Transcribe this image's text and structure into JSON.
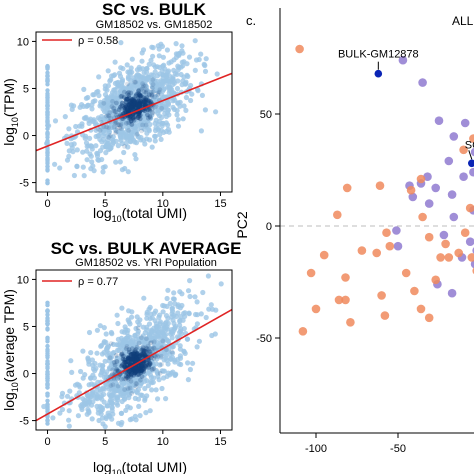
{
  "chart_data": [
    {
      "type": "scatter",
      "title": "SC vs. BULK",
      "subtitle": "GM18502 vs. GM18502",
      "xlabel_base": "log",
      "xlabel_sub": "10",
      "xlabel_rest": "(total UMI)",
      "ylabel_base": "log",
      "ylabel_sub": "10",
      "ylabel_rest": "(TPM)",
      "xlim": [
        -1,
        16
      ],
      "ylim": [
        -6,
        11
      ],
      "xticks": [
        0,
        5,
        10,
        15
      ],
      "yticks": [
        -5,
        0,
        5,
        10
      ],
      "legend": {
        "symbol": "ρ",
        "text": " = 0.58",
        "placement": "top-left"
      },
      "fit_line": {
        "x": [
          -1,
          16
        ],
        "y": [
          -1.6,
          6.6
        ]
      },
      "density_center": [
        7.5,
        3.0
      ],
      "colors": {
        "points": "#9cc5e6",
        "dense": "#0f3e7a",
        "line": "#e02424"
      }
    },
    {
      "type": "scatter",
      "title": "SC vs. BULK AVERAGE",
      "subtitle": "GM18502 vs. YRI Population",
      "xlabel_base": "log",
      "xlabel_sub": "10",
      "xlabel_rest": "(total UMI)",
      "ylabel_base": "log",
      "ylabel_sub": "10",
      "ylabel_rest": "(average TPM)",
      "xlim": [
        -1,
        16
      ],
      "ylim": [
        -6,
        11
      ],
      "xticks": [
        0,
        5,
        10,
        15
      ],
      "yticks": [
        -5,
        0,
        5,
        10
      ],
      "legend": {
        "symbol": "ρ",
        "text": " = 0.77",
        "placement": "top-left"
      },
      "fit_line": {
        "x": [
          -1,
          16
        ],
        "y": [
          -5.0,
          6.8
        ]
      },
      "density_center": [
        7.5,
        1.0
      ],
      "colors": {
        "points": "#9cc5e6",
        "dense": "#0f3e7a",
        "line": "#e02424"
      }
    },
    {
      "type": "scatter",
      "panel_label": "c.",
      "corner_text": "ALL",
      "ylabel": "PC2",
      "xlim": [
        -120,
        0
      ],
      "ylim": [
        -85,
        83
      ],
      "xticks": [
        -100,
        -50
      ],
      "yticks": [
        -50,
        0,
        50
      ],
      "zero_line": true,
      "colors": {
        "purple": "#8f7ad0",
        "orange": "#f08a5d",
        "highlight": "#0a24b5"
      },
      "annotations": [
        {
          "label": "BULK-GM12878",
          "x": -62,
          "y": 68
        },
        {
          "label": "SC",
          "x": -5,
          "y": 28
        }
      ],
      "series": [
        {
          "color_key": "purple",
          "points": [
            [
              -47,
              74
            ],
            [
              -35,
              64
            ],
            [
              -25,
              47
            ],
            [
              -16,
              40
            ],
            [
              -9,
              46
            ],
            [
              -3,
              33
            ],
            [
              -19,
              29
            ],
            [
              -10,
              22
            ],
            [
              -27,
              17
            ],
            [
              -41,
              13
            ],
            [
              -43,
              18
            ],
            [
              -36,
              19
            ],
            [
              -32,
              22
            ],
            [
              -31,
              10
            ],
            [
              -17,
              14
            ],
            [
              -4,
              24
            ],
            [
              -4,
              7
            ],
            [
              -16,
              4
            ],
            [
              -51,
              -2
            ],
            [
              -22,
              -4
            ],
            [
              -50,
              -9
            ],
            [
              -26,
              -26
            ],
            [
              -17,
              -30
            ],
            [
              -11,
              -14
            ],
            [
              -2,
              -11
            ],
            [
              -3,
              -17
            ],
            [
              -6,
              -7
            ]
          ]
        },
        {
          "color_key": "orange",
          "points": [
            [
              -110,
              79
            ],
            [
              -4,
              39
            ],
            [
              -10,
              34
            ],
            [
              -36,
              21
            ],
            [
              -42,
              16
            ],
            [
              -61,
              18
            ],
            [
              -81,
              17
            ],
            [
              -87,
              5
            ],
            [
              -6,
              8
            ],
            [
              -35,
              4
            ],
            [
              -31,
              -5
            ],
            [
              -21,
              -8
            ],
            [
              -13,
              -12
            ],
            [
              -24,
              -14
            ],
            [
              -57,
              -3
            ],
            [
              -63,
              -12
            ],
            [
              -72,
              -11
            ],
            [
              -95,
              -13
            ],
            [
              -103,
              -21
            ],
            [
              -100,
              -37
            ],
            [
              -82,
              -23
            ],
            [
              -82,
              -33
            ],
            [
              -79,
              -43
            ],
            [
              -60,
              -31
            ],
            [
              -58,
              -40
            ],
            [
              -55,
              -9
            ],
            [
              -45,
              -21
            ],
            [
              -40,
              -29
            ],
            [
              -36,
              -37
            ],
            [
              -31,
              -41
            ],
            [
              -27,
              -24
            ],
            [
              -19,
              -14
            ],
            [
              -5,
              -14
            ],
            [
              -2,
              -20
            ],
            [
              -108,
              -47
            ],
            [
              -86,
              -33
            ],
            [
              -9,
              -3
            ]
          ]
        },
        {
          "color_key": "highlight",
          "points": [
            [
              -62,
              68
            ],
            [
              -5,
              28
            ]
          ]
        }
      ]
    }
  ]
}
